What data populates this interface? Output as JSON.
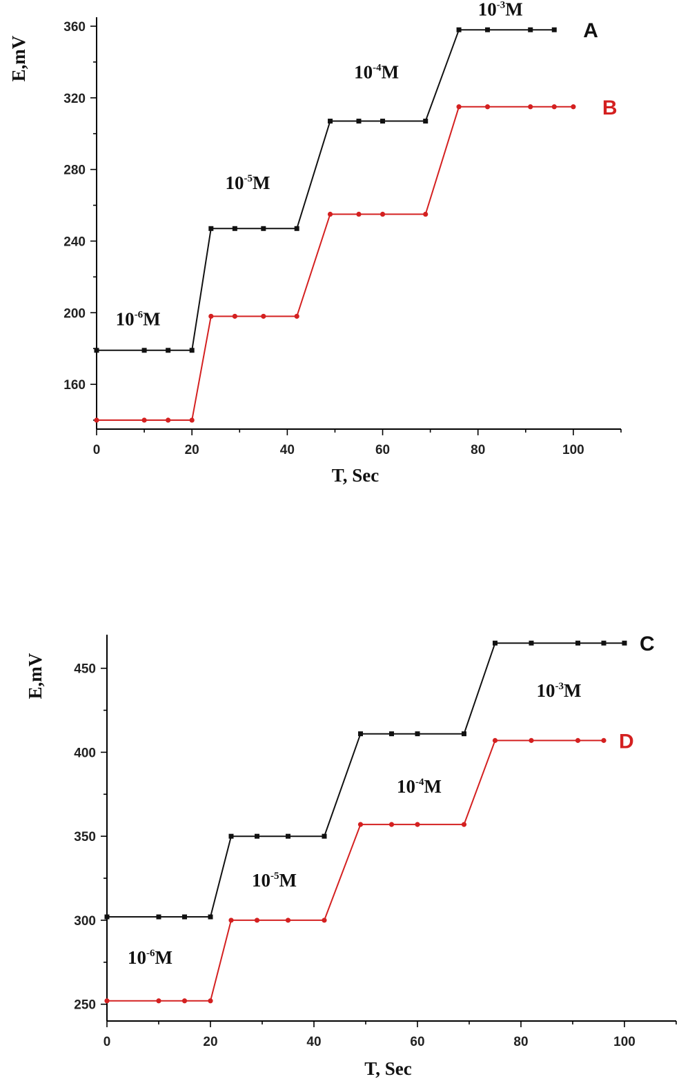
{
  "colors": {
    "black_series": "#111111",
    "red_series": "#d42020",
    "axis": "#000000"
  },
  "chart_data": [
    {
      "type": "line",
      "title": "",
      "xlabel": "T, Sec",
      "ylabel": "E,mV",
      "xlim": [
        0,
        110
      ],
      "ylim": [
        135,
        365
      ],
      "xticks": [
        0,
        20,
        40,
        60,
        80,
        100
      ],
      "yticks": [
        160,
        200,
        240,
        280,
        320,
        360
      ],
      "series": [
        {
          "name": "A",
          "color": "#111111",
          "marker": "square",
          "x": [
            0,
            10,
            15,
            20,
            24,
            29,
            35,
            42,
            49,
            55,
            60,
            69,
            76,
            82,
            91,
            96
          ],
          "y": [
            179,
            179,
            179,
            179,
            247,
            247,
            247,
            247,
            307,
            307,
            307,
            307,
            358,
            358,
            358,
            358
          ]
        },
        {
          "name": "B",
          "color": "#d42020",
          "marker": "circle",
          "x": [
            0,
            10,
            15,
            20,
            24,
            29,
            35,
            42,
            49,
            55,
            60,
            69,
            76,
            82,
            91,
            96,
            100
          ],
          "y": [
            140,
            140,
            140,
            140,
            198,
            198,
            198,
            198,
            255,
            255,
            255,
            255,
            315,
            315,
            315,
            315,
            315
          ]
        }
      ],
      "annotations": [
        {
          "base": "10",
          "exp": "-6",
          "unit": "M",
          "x": 4,
          "y": 193
        },
        {
          "base": "10",
          "exp": "-5",
          "unit": "M",
          "x": 27,
          "y": 269
        },
        {
          "base": "10",
          "exp": "-4",
          "unit": "M",
          "x": 54,
          "y": 331
        },
        {
          "base": "10",
          "exp": "-3",
          "unit": "M",
          "x": 80,
          "y": 366
        }
      ]
    },
    {
      "type": "line",
      "title": "",
      "xlabel": "T, Sec",
      "ylabel": "E,mV",
      "xlim": [
        0,
        110
      ],
      "ylim": [
        240,
        470
      ],
      "xticks": [
        0,
        20,
        40,
        60,
        80,
        100
      ],
      "yticks": [
        250,
        300,
        350,
        400,
        450
      ],
      "series": [
        {
          "name": "C",
          "color": "#111111",
          "marker": "square",
          "x": [
            0,
            10,
            15,
            20,
            24,
            29,
            35,
            42,
            49,
            55,
            60,
            69,
            75,
            82,
            91,
            96,
            100
          ],
          "y": [
            302,
            302,
            302,
            302,
            350,
            350,
            350,
            350,
            411,
            411,
            411,
            411,
            465,
            465,
            465,
            465,
            465
          ]
        },
        {
          "name": "D",
          "color": "#d42020",
          "marker": "circle",
          "x": [
            0,
            10,
            15,
            20,
            24,
            29,
            35,
            42,
            49,
            55,
            60,
            69,
            75,
            82,
            91,
            96
          ],
          "y": [
            252,
            252,
            252,
            252,
            300,
            300,
            300,
            300,
            357,
            357,
            357,
            357,
            407,
            407,
            407,
            407
          ]
        }
      ],
      "annotations": [
        {
          "base": "10",
          "exp": "-6",
          "unit": "M",
          "x": 4,
          "y": 274
        },
        {
          "base": "10",
          "exp": "-5",
          "unit": "M",
          "x": 28,
          "y": 320
        },
        {
          "base": "10",
          "exp": "-4",
          "unit": "M",
          "x": 56,
          "y": 376
        },
        {
          "base": "10",
          "exp": "-3",
          "unit": "M",
          "x": 83,
          "y": 433
        }
      ]
    }
  ]
}
